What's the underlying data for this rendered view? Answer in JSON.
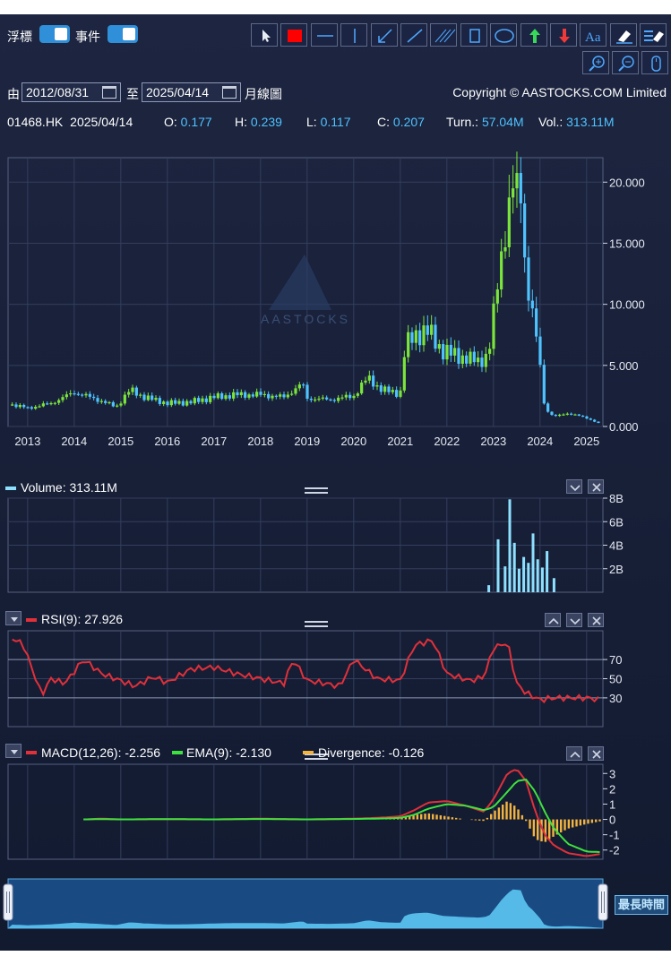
{
  "toolbar": {
    "float_label": "浮標",
    "event_label": "事件",
    "tools": [
      "pointer-icon",
      "color-swatch-icon",
      "horizontal-line-icon",
      "vertical-line-icon",
      "arrow-line-icon",
      "trend-line-icon",
      "parallel-lines-icon",
      "rectangle-icon",
      "ellipse-icon",
      "up-arrow-icon",
      "down-arrow-icon",
      "text-icon",
      "eraser-icon",
      "eraser-all-icon",
      "zoom-in-icon",
      "zoom-out-icon",
      "mouse-icon"
    ],
    "swatch_color": "#ff0000"
  },
  "range": {
    "from_label": "由",
    "from_date": "2012/08/31",
    "to_label": "至",
    "to_date": "2025/04/14",
    "period": "月線圖",
    "copyright": "Copyright © AASTOCKS.COM Limited"
  },
  "quote": {
    "symbol": "01468.HK",
    "date": "2025/04/14",
    "open_label": "O:",
    "open": "0.177",
    "high_label": "H:",
    "high": "0.239",
    "low_label": "L:",
    "low": "0.117",
    "close_label": "C:",
    "close": "0.207",
    "turnover_label": "Turn.:",
    "turnover": "57.04M",
    "volume_label": "Vol.:",
    "volume": "313.11M"
  },
  "watermark": "AASTOCKS",
  "chart_data": [
    {
      "type": "candlestick",
      "x_tick_labels": [
        "2013",
        "2014",
        "2015",
        "2016",
        "2017",
        "2018",
        "2019",
        "2020",
        "2021",
        "2022",
        "2023",
        "2024",
        "2025"
      ],
      "y_tick_labels": [
        "20.000",
        "15.000",
        "10.000",
        "5.000",
        "0.000"
      ],
      "ylim": [
        0,
        22
      ],
      "up_color": "#7ce53c",
      "down_color": "#4fc3ff",
      "series": [
        {
          "x": [
            2012.67,
            2013.0,
            2013.5,
            2014.0,
            2014.5,
            2014.9,
            2015.2,
            2015.5,
            2016.0,
            2016.5,
            2017.0,
            2017.5,
            2018.0,
            2018.5,
            2018.9,
            2019.0,
            2019.5,
            2020.0,
            2020.3,
            2020.6,
            2021.0,
            2021.1,
            2021.3,
            2021.6,
            2021.9,
            2022.3,
            2022.7,
            2022.9,
            2023.0,
            2023.2,
            2023.4,
            2023.6,
            2023.7,
            2023.85,
            2024.0,
            2024.1,
            2024.3,
            2024.6,
            2025.0,
            2025.29
          ],
          "y": [
            1.8,
            1.5,
            1.9,
            2.8,
            2.2,
            1.6,
            3.0,
            2.4,
            1.9,
            2.0,
            2.4,
            2.6,
            2.6,
            2.4,
            3.5,
            2.3,
            2.2,
            2.5,
            4.0,
            3.0,
            2.7,
            6.5,
            7.5,
            7.8,
            6.2,
            5.7,
            5.3,
            6.0,
            9.0,
            15.0,
            19.5,
            19.0,
            12.0,
            9.0,
            5.0,
            1.5,
            0.8,
            1.1,
            0.7,
            0.21
          ]
        }
      ]
    },
    {
      "type": "bar",
      "series": [
        {
          "name": "Volume",
          "value_label": "313.11M"
        }
      ],
      "y_tick_labels": [
        "8B",
        "6B",
        "4B",
        "2B"
      ],
      "ylim": [
        0,
        8
      ],
      "bar_color": "#8ee0ff",
      "x": [
        2022.9,
        2023.1,
        2023.25,
        2023.35,
        2023.45,
        2023.55,
        2023.65,
        2023.75,
        2023.85,
        2023.95,
        2024.05,
        2024.15,
        2024.3
      ],
      "values": [
        0.6,
        4.5,
        2.2,
        7.9,
        4.2,
        2.0,
        3.0,
        2.5,
        5.0,
        2.8,
        2.1,
        3.5,
        1.2
      ]
    },
    {
      "type": "line",
      "series": [
        {
          "name": "RSI(9)",
          "value_label": "27.926",
          "color": "#e0303a"
        }
      ],
      "y_tick_labels": [
        "70",
        "50",
        "30"
      ],
      "ylim": [
        0,
        100
      ],
      "x": [
        2012.67,
        2012.9,
        2013.1,
        2013.3,
        2013.5,
        2013.8,
        2014.2,
        2014.6,
        2015.0,
        2015.3,
        2015.7,
        2016.0,
        2016.5,
        2017.0,
        2017.5,
        2018.0,
        2018.5,
        2018.7,
        2019.0,
        2019.4,
        2019.7,
        2020.0,
        2020.5,
        2021.0,
        2021.3,
        2021.7,
        2022.0,
        2022.5,
        2022.8,
        2023.0,
        2023.3,
        2023.5,
        2023.7,
        2024.0,
        2024.3,
        2025.0,
        2025.29
      ],
      "values": [
        92,
        86,
        60,
        33,
        50,
        45,
        70,
        55,
        48,
        42,
        52,
        46,
        60,
        62,
        55,
        50,
        45,
        70,
        48,
        45,
        42,
        70,
        50,
        48,
        85,
        90,
        55,
        48,
        52,
        82,
        88,
        45,
        35,
        28,
        30,
        30,
        28
      ]
    },
    {
      "type": "line",
      "series": [
        {
          "name": "MACD(12,26)",
          "value_label": "-2.256",
          "color": "#e0303a"
        },
        {
          "name": "EMA(9)",
          "value_label": "-2.130",
          "color": "#3ee23e"
        },
        {
          "name": "Divergence",
          "value_label": "-0.126",
          "color": "#f2b440"
        }
      ],
      "y_tick_labels": [
        "3",
        "2",
        "1",
        "0",
        "-1",
        "-2"
      ],
      "ylim": [
        -2.6,
        3.6
      ],
      "x": [
        2014.2,
        2014.6,
        2015.0,
        2016.0,
        2017.0,
        2018.0,
        2019.0,
        2020.0,
        2020.5,
        2021.0,
        2021.3,
        2021.6,
        2022.0,
        2022.4,
        2022.8,
        2023.0,
        2023.3,
        2023.5,
        2023.7,
        2023.9,
        2024.1,
        2024.3,
        2024.6,
        2025.0,
        2025.29
      ],
      "macd": [
        0.0,
        0.05,
        0.0,
        0.02,
        0.0,
        0.05,
        0.0,
        0.05,
        0.1,
        0.2,
        0.6,
        1.1,
        1.2,
        0.9,
        0.5,
        1.3,
        3.0,
        3.3,
        2.5,
        0.5,
        -1.0,
        -1.7,
        -2.2,
        -2.4,
        -2.256
      ],
      "ema": [
        0.0,
        0.02,
        0.0,
        0.02,
        0.0,
        0.03,
        0.0,
        0.03,
        0.05,
        0.1,
        0.3,
        0.7,
        1.0,
        0.9,
        0.6,
        0.8,
        1.8,
        2.5,
        2.6,
        1.8,
        0.5,
        -0.6,
        -1.6,
        -2.1,
        -2.13
      ]
    }
  ],
  "navigator": {
    "longest_label": "最長時間"
  }
}
